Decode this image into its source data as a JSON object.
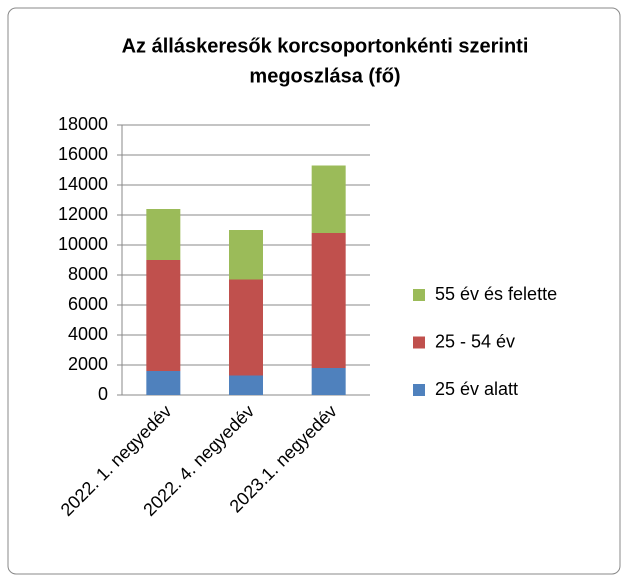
{
  "chart_data": {
    "type": "stacked_bar",
    "title": [
      "Az álláskeresők korcsoportonkénti szerinti",
      "megoszlása (fő)"
    ],
    "categories": [
      "2022. 1. negyedév",
      "2022. 4. negyedév",
      "2023.1. negyedév"
    ],
    "series": [
      {
        "name": "25 év alatt",
        "color": "#4f81bd",
        "values": [
          1600,
          1300,
          1800
        ]
      },
      {
        "name": "25 - 54 év",
        "color": "#c0504d",
        "values": [
          7400,
          6400,
          9000
        ]
      },
      {
        "name": "55 év és felette",
        "color": "#9bbb59",
        "values": [
          3400,
          3300,
          4500
        ]
      }
    ],
    "ylim": [
      0,
      18000
    ],
    "yticks": [
      0,
      2000,
      4000,
      6000,
      8000,
      10000,
      12000,
      14000,
      16000,
      18000
    ],
    "grid": true,
    "legend": "right"
  }
}
